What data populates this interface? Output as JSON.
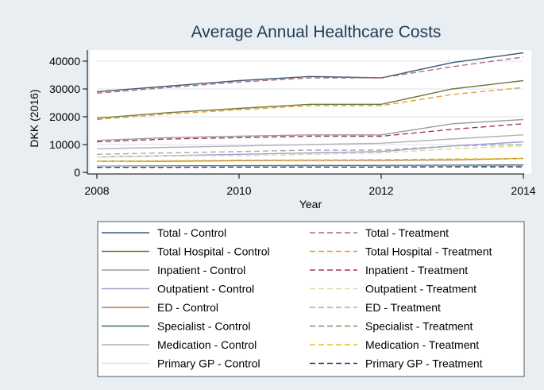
{
  "chart_data": {
    "type": "line",
    "title": "Average Annual Healthcare Costs",
    "xlabel": "Year",
    "ylabel": "DKK (2016)",
    "x": [
      2008,
      2009,
      2010,
      2011,
      2012,
      2013,
      2014
    ],
    "xlim": [
      2008,
      2014
    ],
    "ylim": [
      0,
      44000
    ],
    "xticks": [
      "2008",
      "2010",
      "2012",
      "2014"
    ],
    "yticks": [
      "0",
      "10000",
      "20000",
      "30000",
      "40000"
    ],
    "grid": true,
    "legend_position": "bottom",
    "series": [
      {
        "name": "Total - Control",
        "color": "#3c5a78",
        "dash": "solid",
        "values": [
          29000,
          31000,
          33000,
          34500,
          34000,
          39500,
          43000
        ]
      },
      {
        "name": "Total - Treatment",
        "color": "#b06a7a",
        "dash": "dashed",
        "values": [
          28500,
          30500,
          32500,
          34000,
          34000,
          38000,
          41500
        ]
      },
      {
        "name": "Total Hospital - Control",
        "color": "#6b7a3a",
        "dash": "solid",
        "values": [
          19500,
          21500,
          23000,
          24500,
          24500,
          30000,
          33000
        ]
      },
      {
        "name": "Total Hospital - Treatment",
        "color": "#e3a13a",
        "dash": "dashed",
        "values": [
          19000,
          21000,
          22500,
          24000,
          24000,
          28000,
          30500
        ]
      },
      {
        "name": "Inpatient - Control",
        "color": "#9a9aa8",
        "dash": "solid",
        "values": [
          11500,
          12500,
          13000,
          13500,
          13500,
          17500,
          19000
        ]
      },
      {
        "name": "Inpatient - Treatment",
        "color": "#a63a4a",
        "dash": "dashed",
        "values": [
          11000,
          12000,
          12500,
          13000,
          13000,
          15500,
          17500
        ]
      },
      {
        "name": "Outpatient - Control",
        "color": "#a89ad0",
        "dash": "solid",
        "values": [
          5500,
          6000,
          6500,
          7000,
          7500,
          9500,
          11000
        ]
      },
      {
        "name": "Outpatient - Treatment",
        "color": "#d9dca0",
        "dash": "dashed",
        "values": [
          5500,
          6000,
          6000,
          6500,
          7000,
          8500,
          9500
        ]
      },
      {
        "name": "ED - Control",
        "color": "#b5785a",
        "dash": "solid",
        "values": [
          4000,
          4000,
          4200,
          4300,
          4300,
          4500,
          5000
        ]
      },
      {
        "name": "ED - Treatment",
        "color": "#a8a8b0",
        "dash": "dashed",
        "values": [
          6500,
          7000,
          7500,
          8000,
          8000,
          9500,
          10000
        ]
      },
      {
        "name": "Specialist - Control",
        "color": "#3a6a5a",
        "dash": "solid",
        "values": [
          2200,
          2300,
          2400,
          2500,
          2500,
          2600,
          2700
        ]
      },
      {
        "name": "Specialist - Treatment",
        "color": "#8a8a60",
        "dash": "dashed",
        "values": [
          2000,
          2100,
          2200,
          2300,
          2300,
          2400,
          2500
        ]
      },
      {
        "name": "Medication - Control",
        "color": "#b0b0b8",
        "dash": "solid",
        "values": [
          8500,
          9000,
          9500,
          10000,
          10500,
          12000,
          13500
        ]
      },
      {
        "name": "Medication - Treatment",
        "color": "#e6c22a",
        "dash": "dashed",
        "values": [
          4000,
          4200,
          4400,
          4500,
          4600,
          4800,
          5000
        ]
      },
      {
        "name": "Primary GP - Control",
        "color": "#e2e2e2",
        "dash": "solid",
        "values": [
          2000,
          2000,
          2100,
          2100,
          2100,
          2200,
          2200
        ]
      },
      {
        "name": "Primary GP - Treatment",
        "color": "#2a3a7a",
        "dash": "dashed",
        "values": [
          1800,
          1800,
          1900,
          1900,
          1900,
          2000,
          2000
        ]
      }
    ]
  }
}
